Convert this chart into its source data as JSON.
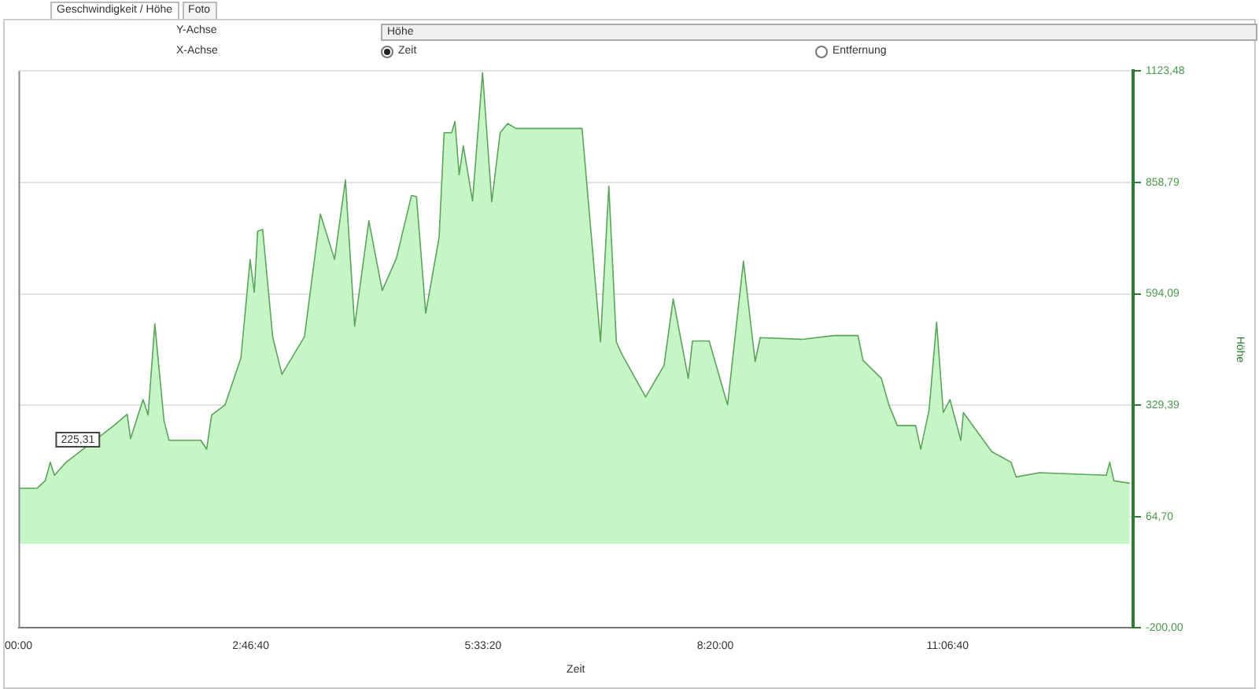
{
  "chart_data": {
    "type": "area",
    "xlabel": "Zeit",
    "ylabel": "Höhe",
    "annotations": [
      {
        "text": "225,31",
        "x": 0.85,
        "y": 225.31
      },
      "Geschwindigkeit / Höhe",
      "Foto",
      "Y-Achse",
      "Höhe",
      "X-Achse",
      "Zeit",
      "Entfernung"
    ],
    "xlim": [
      0,
      13.33
    ],
    "xticks": [
      {
        "value": 0,
        "label": "00:00"
      },
      {
        "value": 2.7778,
        "label": "2:46:40"
      },
      {
        "value": 5.5556,
        "label": "5:33:20"
      },
      {
        "value": 8.3333,
        "label": "8:20:00"
      },
      {
        "value": 11.1111,
        "label": "11:06:40"
      }
    ],
    "ylim": [
      -200,
      1123.48
    ],
    "yticks": [
      {
        "value": -200,
        "label": "-200,00"
      },
      {
        "value": 64.7,
        "label": "64,70"
      },
      {
        "value": 329.39,
        "label": "329,39"
      },
      {
        "value": 594.09,
        "label": "594,09"
      },
      {
        "value": 858.79,
        "label": "858,79"
      },
      {
        "value": 1123.48,
        "label": "1123,48"
      }
    ],
    "grid": "y",
    "legend": false,
    "marker": "none",
    "line_style": "solid",
    "series": [
      {
        "color": "#5aa55a",
        "x": [
          0,
          0.22,
          0.32,
          0.38,
          0.43,
          0.57,
          1.14,
          1.3,
          1.34,
          1.49,
          1.55,
          1.63,
          1.74,
          1.8,
          2.18,
          2.25,
          2.31,
          2.47,
          2.66,
          2.77,
          2.82,
          2.86,
          2.92,
          3.04,
          3.15,
          3.42,
          3.61,
          3.78,
          3.91,
          4.02,
          4.19,
          4.35,
          4.52,
          4.7,
          4.76,
          4.87,
          5.03,
          5.09,
          5.18,
          5.22,
          5.27,
          5.32,
          5.43,
          5.55,
          5.66,
          5.76,
          5.85,
          5.95,
          6.74,
          6.96,
          7.06,
          7.15,
          7.22,
          7.5,
          7.72,
          7.83,
          8.01,
          8.06,
          8.26,
          8.48,
          8.67,
          8.81,
          8.87,
          9.37,
          9.75,
          10.04,
          10.1,
          10.32,
          10.41,
          10.51,
          10.73,
          10.79,
          10.89,
          10.98,
          11.06,
          11.14,
          11.27,
          11.3,
          11.64,
          11.87,
          11.93,
          12.21,
          13.01,
          13.05,
          13.1,
          13.29
        ],
        "values": [
          132,
          132,
          150,
          194,
          163,
          194,
          281,
          308,
          250,
          343,
          306,
          523,
          293,
          246,
          246,
          225,
          306,
          330,
          442,
          676,
          598,
          743,
          747,
          492,
          403,
          492,
          784,
          676,
          865,
          517,
          768,
          602,
          679,
          828,
          825,
          548,
          728,
          977,
          977,
          1004,
          877,
          946,
          815,
          1120,
          813,
          977,
          999,
          987,
          987,
          480,
          850,
          480,
          449,
          349,
          424,
          582,
          393,
          482,
          482,
          330,
          672,
          433,
          490,
          486,
          495,
          495,
          436,
          393,
          330,
          281,
          281,
          225,
          318,
          527,
          312,
          343,
          246,
          312,
          219,
          194,
          159,
          169,
          163,
          194,
          150,
          144
        ]
      }
    ]
  }
}
